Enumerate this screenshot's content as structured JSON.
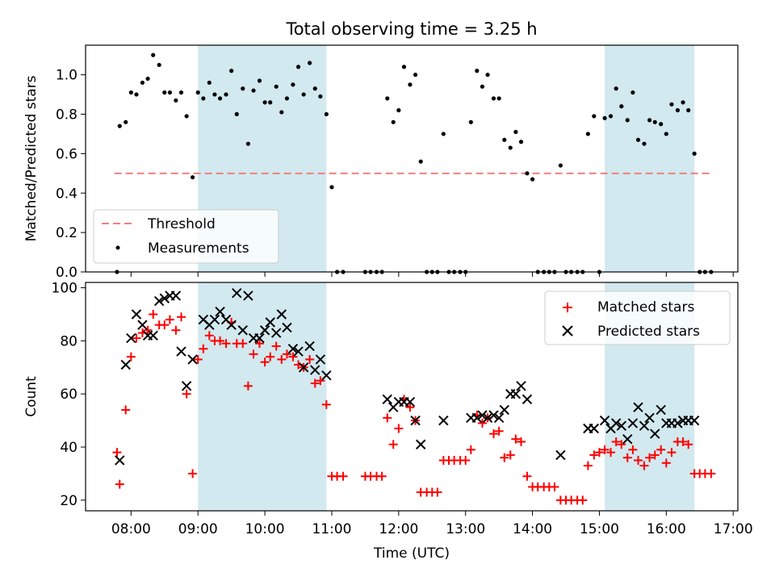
{
  "figure": {
    "title": "Total observing time = 3.25 h"
  },
  "chart_data": [
    {
      "type": "scatter",
      "panel": "top",
      "title": "Total observing time = 3.25 h",
      "xlabel": "",
      "ylabel": "Matched/Predicted stars",
      "x_unit": "hours (UTC)",
      "xlim": [
        7.32,
        17.07
      ],
      "ylim": [
        0.0,
        1.15
      ],
      "yticks": [
        0.0,
        0.2,
        0.4,
        0.6,
        0.8,
        1.0
      ],
      "ytick_labels": [
        "0.0",
        "0.2",
        "0.4",
        "0.6",
        "0.8",
        "1.0"
      ],
      "grid": false,
      "legend": "lower-left",
      "shaded_regions": [
        [
          9.0,
          10.92
        ],
        [
          15.08,
          16.42
        ]
      ],
      "shade_color": "#d2e9ef",
      "threshold": {
        "name": "Threshold",
        "y": 0.5,
        "x_range": [
          7.75,
          16.67
        ],
        "color": "#f08080",
        "style": "dashed"
      },
      "series": [
        {
          "name": "Measurements",
          "color": "#000000",
          "marker": "dot",
          "x": [
            7.79,
            7.83,
            7.92,
            8.0,
            8.08,
            8.17,
            8.25,
            8.33,
            8.42,
            8.5,
            8.58,
            8.67,
            8.75,
            8.83,
            8.92,
            9.0,
            9.08,
            9.17,
            9.25,
            9.33,
            9.42,
            9.5,
            9.58,
            9.67,
            9.75,
            9.83,
            9.92,
            10.0,
            10.08,
            10.17,
            10.25,
            10.33,
            10.42,
            10.5,
            10.58,
            10.67,
            10.75,
            10.83,
            10.92,
            11.0,
            11.08,
            11.17,
            11.5,
            11.58,
            11.67,
            11.75,
            11.83,
            11.92,
            12.0,
            12.08,
            12.17,
            12.25,
            12.33,
            12.42,
            12.5,
            12.58,
            12.67,
            12.75,
            12.83,
            12.92,
            13.0,
            13.08,
            13.17,
            13.25,
            13.33,
            13.42,
            13.5,
            13.58,
            13.67,
            13.75,
            13.83,
            13.92,
            14.0,
            14.08,
            14.17,
            14.25,
            14.33,
            14.42,
            14.5,
            14.58,
            14.67,
            14.75,
            14.83,
            14.92,
            15.0,
            15.08,
            15.17,
            15.25,
            15.33,
            15.42,
            15.5,
            15.58,
            15.67,
            15.75,
            15.83,
            15.92,
            16.0,
            16.08,
            16.17,
            16.25,
            16.33,
            16.42,
            16.5,
            16.58,
            16.67
          ],
          "y": [
            0.0,
            0.74,
            0.76,
            0.91,
            0.9,
            0.96,
            0.98,
            1.1,
            1.05,
            0.91,
            0.91,
            0.87,
            0.91,
            0.79,
            0.48,
            0.91,
            0.88,
            0.96,
            0.9,
            0.88,
            0.9,
            1.02,
            0.8,
            0.93,
            0.65,
            0.92,
            0.97,
            0.86,
            0.86,
            0.94,
            0.81,
            0.88,
            0.95,
            1.04,
            0.9,
            1.06,
            0.93,
            0.89,
            0.8,
            0.43,
            0.0,
            0.0,
            0.0,
            0.0,
            0.0,
            0.0,
            0.88,
            0.76,
            0.82,
            1.04,
            0.95,
            1.0,
            0.56,
            0.0,
            0.0,
            0.0,
            0.7,
            0.0,
            0.0,
            0.0,
            0.0,
            0.76,
            1.02,
            0.94,
            1.0,
            0.88,
            0.88,
            0.67,
            0.63,
            0.71,
            0.66,
            0.5,
            0.47,
            0.0,
            0.0,
            0.0,
            0.0,
            0.54,
            0.0,
            0.0,
            0.0,
            0.0,
            0.7,
            0.79,
            0.0,
            0.78,
            0.79,
            0.93,
            0.84,
            0.77,
            0.91,
            0.67,
            0.65,
            0.77,
            0.76,
            0.75,
            0.7,
            0.85,
            0.82,
            0.86,
            0.82,
            0.6,
            0.0,
            0.0,
            0.0
          ]
        }
      ]
    },
    {
      "type": "scatter",
      "panel": "bottom",
      "xlabel": "Time (UTC)",
      "ylabel": "Count",
      "x_unit": "hours (UTC)",
      "xlim": [
        7.32,
        17.07
      ],
      "ylim": [
        16.0,
        102.0
      ],
      "yticks": [
        20,
        40,
        60,
        80,
        100
      ],
      "ytick_labels": [
        "20",
        "40",
        "60",
        "80",
        "100"
      ],
      "xticks": [
        8,
        9,
        10,
        11,
        12,
        13,
        14,
        15,
        16,
        17
      ],
      "xtick_labels": [
        "08:00",
        "09:00",
        "10:00",
        "11:00",
        "12:00",
        "13:00",
        "14:00",
        "15:00",
        "16:00",
        "17:00"
      ],
      "grid": false,
      "legend": "top-right",
      "shaded_regions": [
        [
          9.0,
          10.92
        ],
        [
          15.08,
          16.42
        ]
      ],
      "shade_color": "#d2e9ef",
      "series": [
        {
          "name": "Matched stars",
          "color": "#ff0000",
          "marker": "plus",
          "x": [
            7.79,
            7.83,
            7.92,
            8.0,
            8.08,
            8.17,
            8.25,
            8.33,
            8.42,
            8.5,
            8.58,
            8.67,
            8.75,
            8.83,
            8.92,
            9.0,
            9.08,
            9.17,
            9.25,
            9.33,
            9.42,
            9.5,
            9.58,
            9.67,
            9.75,
            9.83,
            9.92,
            10.0,
            10.08,
            10.17,
            10.25,
            10.33,
            10.42,
            10.5,
            10.58,
            10.67,
            10.75,
            10.83,
            10.92,
            11.0,
            11.08,
            11.17,
            11.5,
            11.58,
            11.67,
            11.75,
            11.83,
            11.92,
            12.0,
            12.08,
            12.17,
            12.25,
            12.33,
            12.42,
            12.5,
            12.58,
            12.67,
            12.75,
            12.83,
            12.92,
            13.0,
            13.08,
            13.17,
            13.25,
            13.33,
            13.42,
            13.5,
            13.58,
            13.67,
            13.75,
            13.83,
            13.92,
            14.0,
            14.08,
            14.17,
            14.25,
            14.33,
            14.42,
            14.5,
            14.58,
            14.67,
            14.75,
            14.83,
            14.92,
            15.0,
            15.08,
            15.17,
            15.25,
            15.33,
            15.42,
            15.5,
            15.58,
            15.67,
            15.75,
            15.83,
            15.92,
            16.0,
            16.08,
            16.17,
            16.25,
            16.33,
            16.42,
            16.5,
            16.58,
            16.67
          ],
          "y": [
            38,
            26,
            54,
            74,
            81,
            83,
            84,
            90,
            86,
            86,
            88,
            84,
            89,
            60,
            30,
            73,
            77,
            82,
            80,
            80,
            79,
            87,
            79,
            79,
            63,
            75,
            79,
            72,
            74,
            78,
            73,
            75,
            74,
            71,
            70,
            73,
            64,
            65,
            56,
            29,
            29,
            29,
            29,
            29,
            29,
            29,
            51,
            41,
            47,
            58,
            55,
            50,
            23,
            23,
            23,
            23,
            35,
            35,
            35,
            35,
            35,
            39,
            52,
            49,
            51,
            45,
            46,
            36,
            37,
            43,
            42,
            29,
            25,
            25,
            25,
            25,
            25,
            20,
            20,
            20,
            20,
            20,
            33,
            37,
            38,
            39,
            38,
            42,
            41,
            36,
            39,
            35,
            33,
            36,
            37,
            39,
            34,
            38,
            42,
            42,
            41,
            30,
            30,
            30,
            30
          ]
        },
        {
          "name": "Predicted stars",
          "color": "#000000",
          "marker": "x",
          "x": [
            7.83,
            7.92,
            8.0,
            8.08,
            8.17,
            8.25,
            8.33,
            8.42,
            8.5,
            8.58,
            8.67,
            8.75,
            8.83,
            8.92,
            9.08,
            9.17,
            9.25,
            9.33,
            9.42,
            9.5,
            9.58,
            9.67,
            9.75,
            9.83,
            9.92,
            10.0,
            10.08,
            10.17,
            10.25,
            10.33,
            10.42,
            10.5,
            10.58,
            10.67,
            10.75,
            10.83,
            10.92,
            11.83,
            11.92,
            12.0,
            12.08,
            12.17,
            12.25,
            12.33,
            12.67,
            13.08,
            13.17,
            13.25,
            13.33,
            13.42,
            13.5,
            13.58,
            13.67,
            13.75,
            13.83,
            13.92,
            14.42,
            14.83,
            14.92,
            15.08,
            15.17,
            15.25,
            15.33,
            15.42,
            15.5,
            15.58,
            15.67,
            15.75,
            15.83,
            15.92,
            16.0,
            16.08,
            16.17,
            16.25,
            16.33,
            16.42
          ],
          "y": [
            35,
            71,
            81,
            90,
            86,
            82,
            82,
            95,
            96,
            97,
            97,
            76,
            63,
            73,
            88,
            86,
            88,
            91,
            88,
            86,
            98,
            84,
            97,
            81,
            81,
            84,
            87,
            83,
            90,
            85,
            77,
            76,
            70,
            78,
            69,
            73,
            67,
            58,
            55,
            57,
            57,
            57,
            50,
            41,
            50,
            51,
            51,
            52,
            51,
            52,
            51,
            54,
            60,
            60,
            63,
            58,
            37,
            47,
            47,
            50,
            47,
            49,
            48,
            43,
            49,
            55,
            48,
            51,
            45,
            54,
            49,
            49,
            49,
            50,
            50,
            50
          ]
        }
      ]
    }
  ]
}
